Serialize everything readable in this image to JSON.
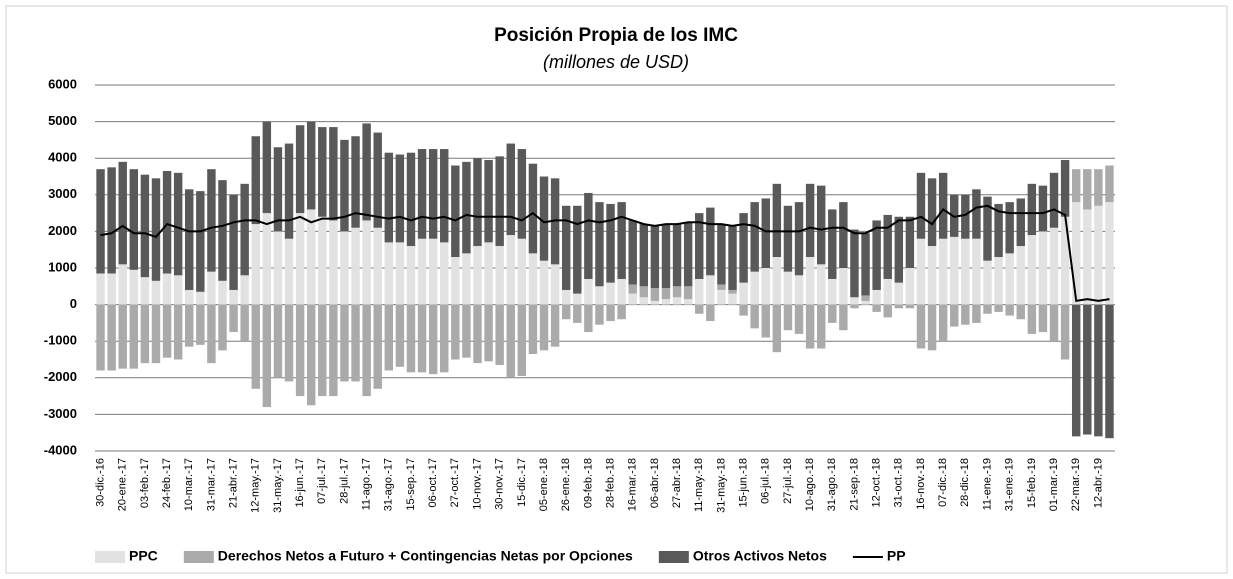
{
  "chart_data": {
    "type": "bar",
    "title": "Posición Propia de los IMC",
    "subtitle": "(millones de USD)",
    "categories": [
      "30-dic.-16",
      null,
      "20-ene.-17",
      null,
      "03-feb.-17",
      null,
      "24-feb.-17",
      null,
      "10-mar.-17",
      null,
      "31-mar.-17",
      null,
      "21-abr.-17",
      null,
      "12-may.-17",
      null,
      "31-may.-17",
      null,
      "16-jun.-17",
      null,
      "07-jul.-17",
      null,
      "28-jul.-17",
      null,
      "11-ago.-17",
      null,
      "31-ago.-17",
      null,
      "15-sep.-17",
      null,
      "06-oct.-17",
      null,
      "27-oct.-17",
      null,
      "10-nov.-17",
      null,
      "30-nov.-17",
      null,
      "15-dic.-17",
      null,
      "05-ene.-18",
      null,
      "26-ene.-18",
      null,
      "09-feb.-18",
      null,
      "28-feb.-18",
      null,
      "16-mar.-18",
      null,
      "06-abr.-18",
      null,
      "27-abr.-18",
      null,
      "11-may.-18",
      null,
      "31-may.-18",
      null,
      "15-jun.-18",
      null,
      "06-jul.-18",
      null,
      "27-jul.-18",
      null,
      "10-ago.-18",
      null,
      "31-ago.-18",
      null,
      "21-sep.-18",
      null,
      "12-oct.-18",
      null,
      "31-oct.-18",
      null,
      "16-nov.-18",
      null,
      "07-dic.-18",
      null,
      "28-dic.-18",
      null,
      "11-ene.-19",
      null,
      "31-ene.-19",
      null,
      "15-feb.-19",
      null,
      "01-mar.-19",
      null,
      "22-mar.-19",
      null,
      "12-abr.-19",
      null
    ],
    "series": [
      {
        "name": "PPC",
        "color": "#e2e2e2",
        "values": [
          850,
          850,
          1100,
          950,
          750,
          650,
          850,
          800,
          400,
          350,
          900,
          650,
          400,
          800,
          2200,
          2500,
          2000,
          1800,
          2500,
          2600,
          2400,
          2300,
          2000,
          2100,
          2300,
          2100,
          1700,
          1700,
          1600,
          1800,
          1800,
          1700,
          1300,
          1400,
          1600,
          1700,
          1600,
          1900,
          1800,
          1400,
          1200,
          1100,
          400,
          300,
          700,
          500,
          600,
          700,
          300,
          200,
          100,
          150,
          200,
          150,
          700,
          800,
          400,
          300,
          600,
          900,
          1000,
          1300,
          900,
          800,
          1300,
          1100,
          700,
          1000,
          200,
          100,
          400,
          700,
          600,
          1000,
          1800,
          1600,
          1800,
          1850,
          1800,
          1800,
          1200,
          1300,
          1400,
          1600,
          1900,
          2000,
          2100,
          2400,
          2800,
          2600,
          2700,
          2800
        ]
      },
      {
        "name": "Derechos Netos a Futuro + Contingencias Netas por Opciones",
        "color": "#aaaaaa",
        "values": [
          -1800,
          -1800,
          -1750,
          -1750,
          -1600,
          -1600,
          -1450,
          -1500,
          -1150,
          -1100,
          -1600,
          -1250,
          -750,
          -1000,
          -2300,
          -2800,
          -2000,
          -2100,
          -2500,
          -2750,
          -2500,
          -2500,
          -2100,
          -2100,
          -2500,
          -2300,
          -1800,
          -1700,
          -1850,
          -1850,
          -1900,
          -1850,
          -1500,
          -1450,
          -1600,
          -1550,
          -1650,
          -2000,
          -1950,
          -1350,
          -1250,
          -1150,
          -400,
          -500,
          -750,
          -550,
          -450,
          -400,
          250,
          300,
          350,
          300,
          300,
          350,
          -250,
          -450,
          150,
          100,
          -300,
          -650,
          -900,
          -1300,
          -700,
          -800,
          -1200,
          -1200,
          -500,
          -700,
          -100,
          150,
          -200,
          -350,
          -100,
          -100,
          -1200,
          -1250,
          -1000,
          -600,
          -550,
          -500,
          -250,
          -200,
          -300,
          -400,
          -800,
          -750,
          -1000,
          -1500,
          900,
          1100,
          1000,
          1000
        ]
      },
      {
        "name": "Otros Activos Netos",
        "color": "#595959",
        "values": [
          2850,
          2900,
          2800,
          2750,
          2800,
          2800,
          2800,
          2800,
          2750,
          2750,
          2800,
          2750,
          2600,
          2500,
          2400,
          2500,
          2300,
          2600,
          2400,
          2400,
          2450,
          2550,
          2500,
          2500,
          2650,
          2600,
          2450,
          2400,
          2550,
          2450,
          2450,
          2550,
          2500,
          2500,
          2400,
          2250,
          2450,
          2500,
          2450,
          2450,
          2300,
          2350,
          2300,
          2400,
          2350,
          2300,
          2150,
          2100,
          1750,
          1700,
          1700,
          1750,
          1700,
          1750,
          1800,
          1850,
          1650,
          1750,
          1900,
          1900,
          1900,
          2000,
          1800,
          2000,
          2000,
          2150,
          1900,
          1800,
          1850,
          1700,
          1900,
          1750,
          1800,
          1400,
          1800,
          1850,
          1800,
          1150,
          1200,
          1350,
          1750,
          1450,
          1400,
          1300,
          1400,
          1250,
          1500,
          1550,
          -3600,
          -3550,
          -3600,
          -3650
        ]
      },
      {
        "name": "PP",
        "color": "#000000",
        "line": true,
        "values": [
          1900,
          1950,
          2150,
          1950,
          1950,
          1850,
          2200,
          2100,
          2000,
          2000,
          2100,
          2150,
          2250,
          2300,
          2300,
          2200,
          2300,
          2300,
          2400,
          2250,
          2350,
          2350,
          2400,
          2500,
          2450,
          2400,
          2350,
          2400,
          2300,
          2400,
          2350,
          2400,
          2300,
          2450,
          2400,
          2400,
          2400,
          2400,
          2300,
          2500,
          2250,
          2300,
          2300,
          2200,
          2300,
          2250,
          2300,
          2400,
          2300,
          2200,
          2150,
          2200,
          2200,
          2250,
          2250,
          2200,
          2200,
          2150,
          2200,
          2150,
          2000,
          2000,
          2000,
          2000,
          2100,
          2050,
          2100,
          2100,
          1950,
          1950,
          2100,
          2100,
          2300,
          2300,
          2400,
          2200,
          2600,
          2400,
          2450,
          2650,
          2700,
          2550,
          2500,
          2500,
          2500,
          2500,
          2600,
          2450,
          100,
          150,
          100,
          150
        ]
      }
    ],
    "ylim": [
      -4000,
      6000
    ],
    "yticks": [
      -4000,
      -3000,
      -2000,
      -1000,
      0,
      1000,
      2000,
      3000,
      4000,
      5000,
      6000
    ],
    "grid": true
  }
}
